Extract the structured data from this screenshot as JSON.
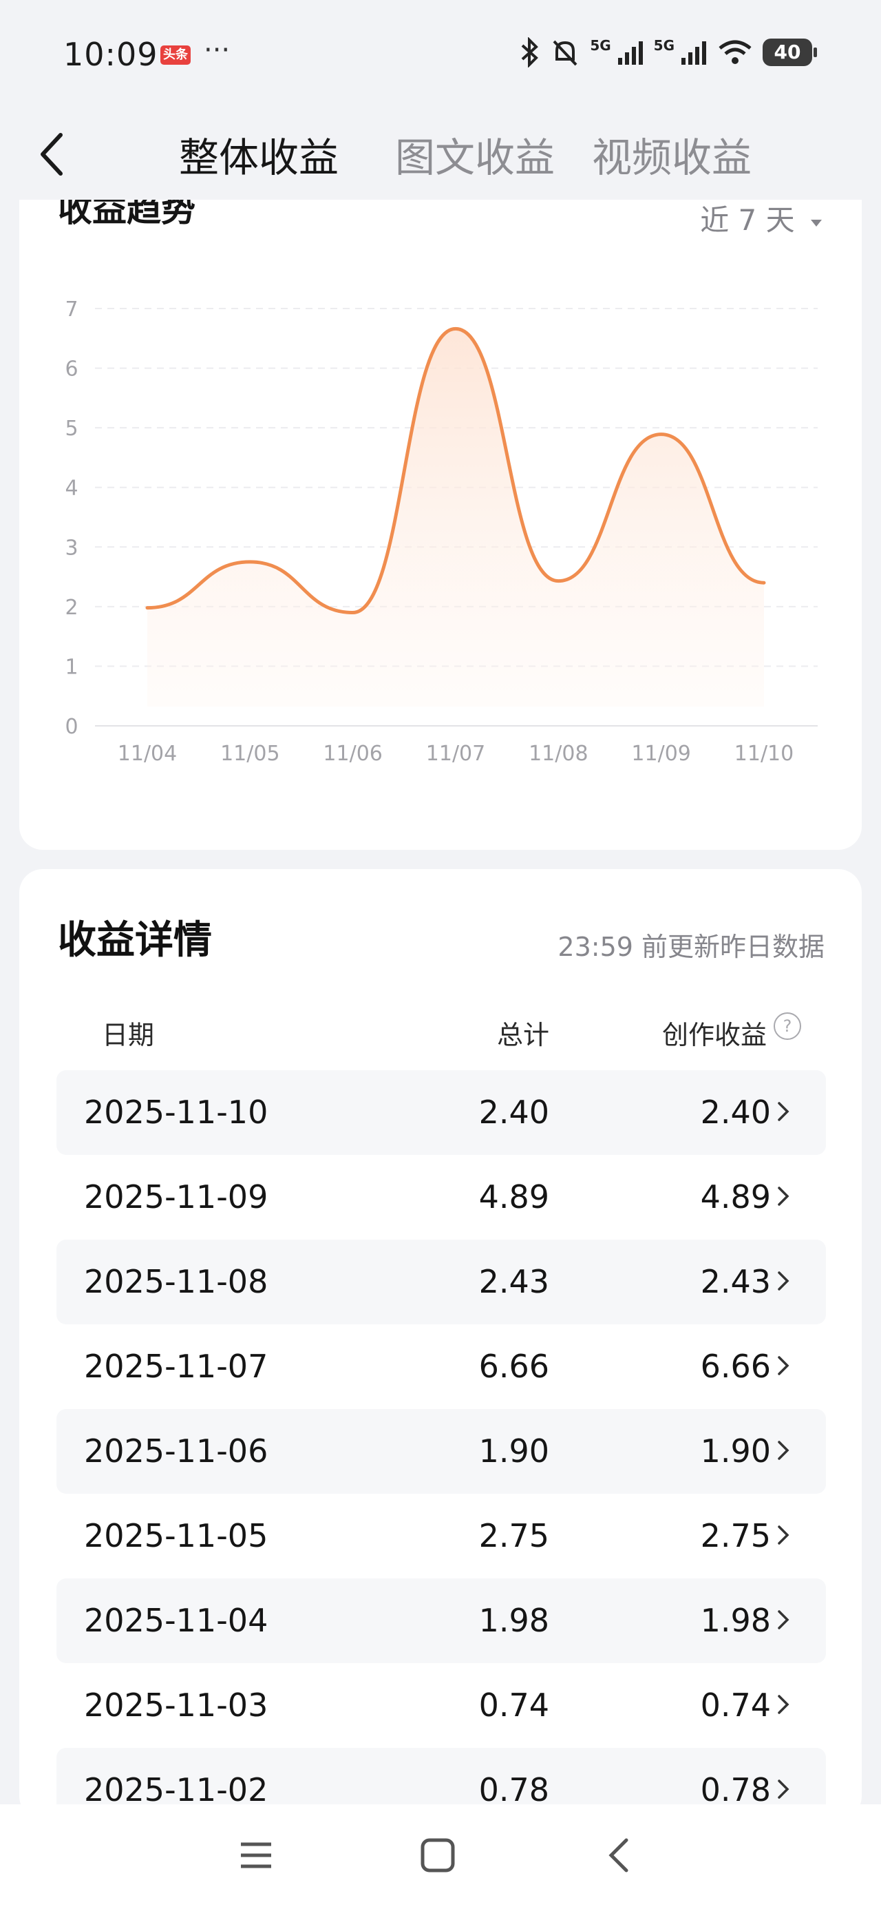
{
  "status_bar": {
    "time": "10:09",
    "app_badge": "头条",
    "more": "···",
    "signal1": "5G",
    "signal2": "5G",
    "battery": "40"
  },
  "nav": {
    "tabs": [
      {
        "label": "整体收益",
        "active": true
      },
      {
        "label": "图文收益",
        "active": false
      },
      {
        "label": "视频收益",
        "active": false
      }
    ]
  },
  "trend": {
    "title": "收益趋势",
    "range_label": "近 7 天"
  },
  "chart_data": {
    "type": "area",
    "categories": [
      "11/04",
      "11/05",
      "11/06",
      "11/07",
      "11/08",
      "11/09",
      "11/10"
    ],
    "series": [
      {
        "values": [
          1.98,
          2.75,
          1.9,
          6.66,
          2.43,
          4.89,
          2.4
        ]
      }
    ],
    "y_ticks": [
      0,
      1,
      2,
      3,
      4,
      5,
      6,
      7
    ],
    "ylim": [
      0,
      7
    ],
    "grid": true,
    "line_color": "#f08d4f",
    "fill_color": "#fde7da"
  },
  "detail": {
    "title": "收益详情",
    "note": "23:59 前更新昨日数据",
    "columns": {
      "date": "日期",
      "total": "总计",
      "income": "创作收益"
    },
    "rows": [
      {
        "date": "2025-11-10",
        "total": "2.40",
        "income": "2.40"
      },
      {
        "date": "2025-11-09",
        "total": "4.89",
        "income": "4.89"
      },
      {
        "date": "2025-11-08",
        "total": "2.43",
        "income": "2.43"
      },
      {
        "date": "2025-11-07",
        "total": "6.66",
        "income": "6.66"
      },
      {
        "date": "2025-11-06",
        "total": "1.90",
        "income": "1.90"
      },
      {
        "date": "2025-11-05",
        "total": "2.75",
        "income": "2.75"
      },
      {
        "date": "2025-11-04",
        "total": "1.98",
        "income": "1.98"
      },
      {
        "date": "2025-11-03",
        "total": "0.74",
        "income": "0.74"
      },
      {
        "date": "2025-11-02",
        "total": "0.78",
        "income": "0.78"
      }
    ]
  }
}
